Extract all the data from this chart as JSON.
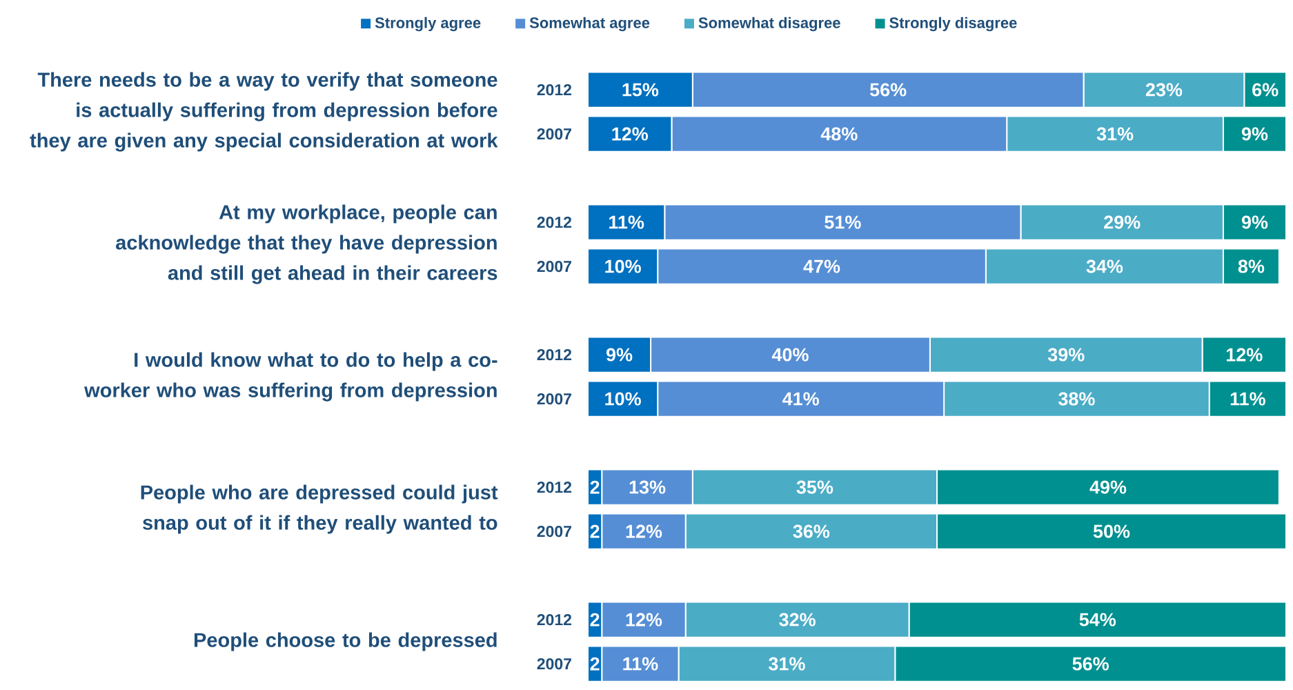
{
  "chart_data": {
    "type": "bar",
    "orientation": "horizontal",
    "stacked": true,
    "legend": "top",
    "tick_labels": "y",
    "categories": [
      "2012",
      "2007",
      "2012",
      "2007",
      "2012",
      "2007",
      "2012",
      "2007",
      "2012",
      "2007"
    ],
    "annotations": [
      "There needs to be a way to verify that someone is actually suffering from depression before they are given any special consideration at work",
      "At my workplace, people can acknowledge that they have depression and still get ahead in their careers",
      "I would know what to do to help a co-worker who was suffering from depression",
      "People who are depressed could just snap out of it if they really wanted to",
      "People choose to be depressed"
    ],
    "series": [
      {
        "name": "Strongly agree",
        "color": "#0070c0",
        "values": [
          15,
          12,
          11,
          10,
          9,
          10,
          2,
          2,
          2,
          2
        ],
        "value_labels": [
          "15%",
          "12%",
          "11%",
          "10%",
          "9%",
          "10%",
          "2",
          "2",
          "2",
          "2"
        ]
      },
      {
        "name": "Somewhat agree",
        "color": "#558ed5",
        "values": [
          56,
          48,
          51,
          47,
          40,
          41,
          13,
          12,
          12,
          11
        ],
        "value_labels": [
          "56%",
          "48%",
          "51%",
          "47%",
          "40%",
          "41%",
          "13%",
          "12%",
          "12%",
          "11%"
        ]
      },
      {
        "name": "Somewhat disagree",
        "color": "#4bacc6",
        "values": [
          23,
          31,
          29,
          34,
          39,
          38,
          35,
          36,
          32,
          31
        ],
        "value_labels": [
          "23%",
          "31%",
          "29%",
          "34%",
          "39%",
          "38%",
          "35%",
          "36%",
          "32%",
          "31%"
        ]
      },
      {
        "name": "Strongly disagree",
        "color": "#009090",
        "values": [
          6,
          9,
          9,
          8,
          12,
          11,
          49,
          50,
          54,
          56
        ],
        "value_labels": [
          "6%",
          "9%",
          "9%",
          "8%",
          "12%",
          "11%",
          "49%",
          "50%",
          "54%",
          "56%"
        ]
      }
    ]
  }
}
